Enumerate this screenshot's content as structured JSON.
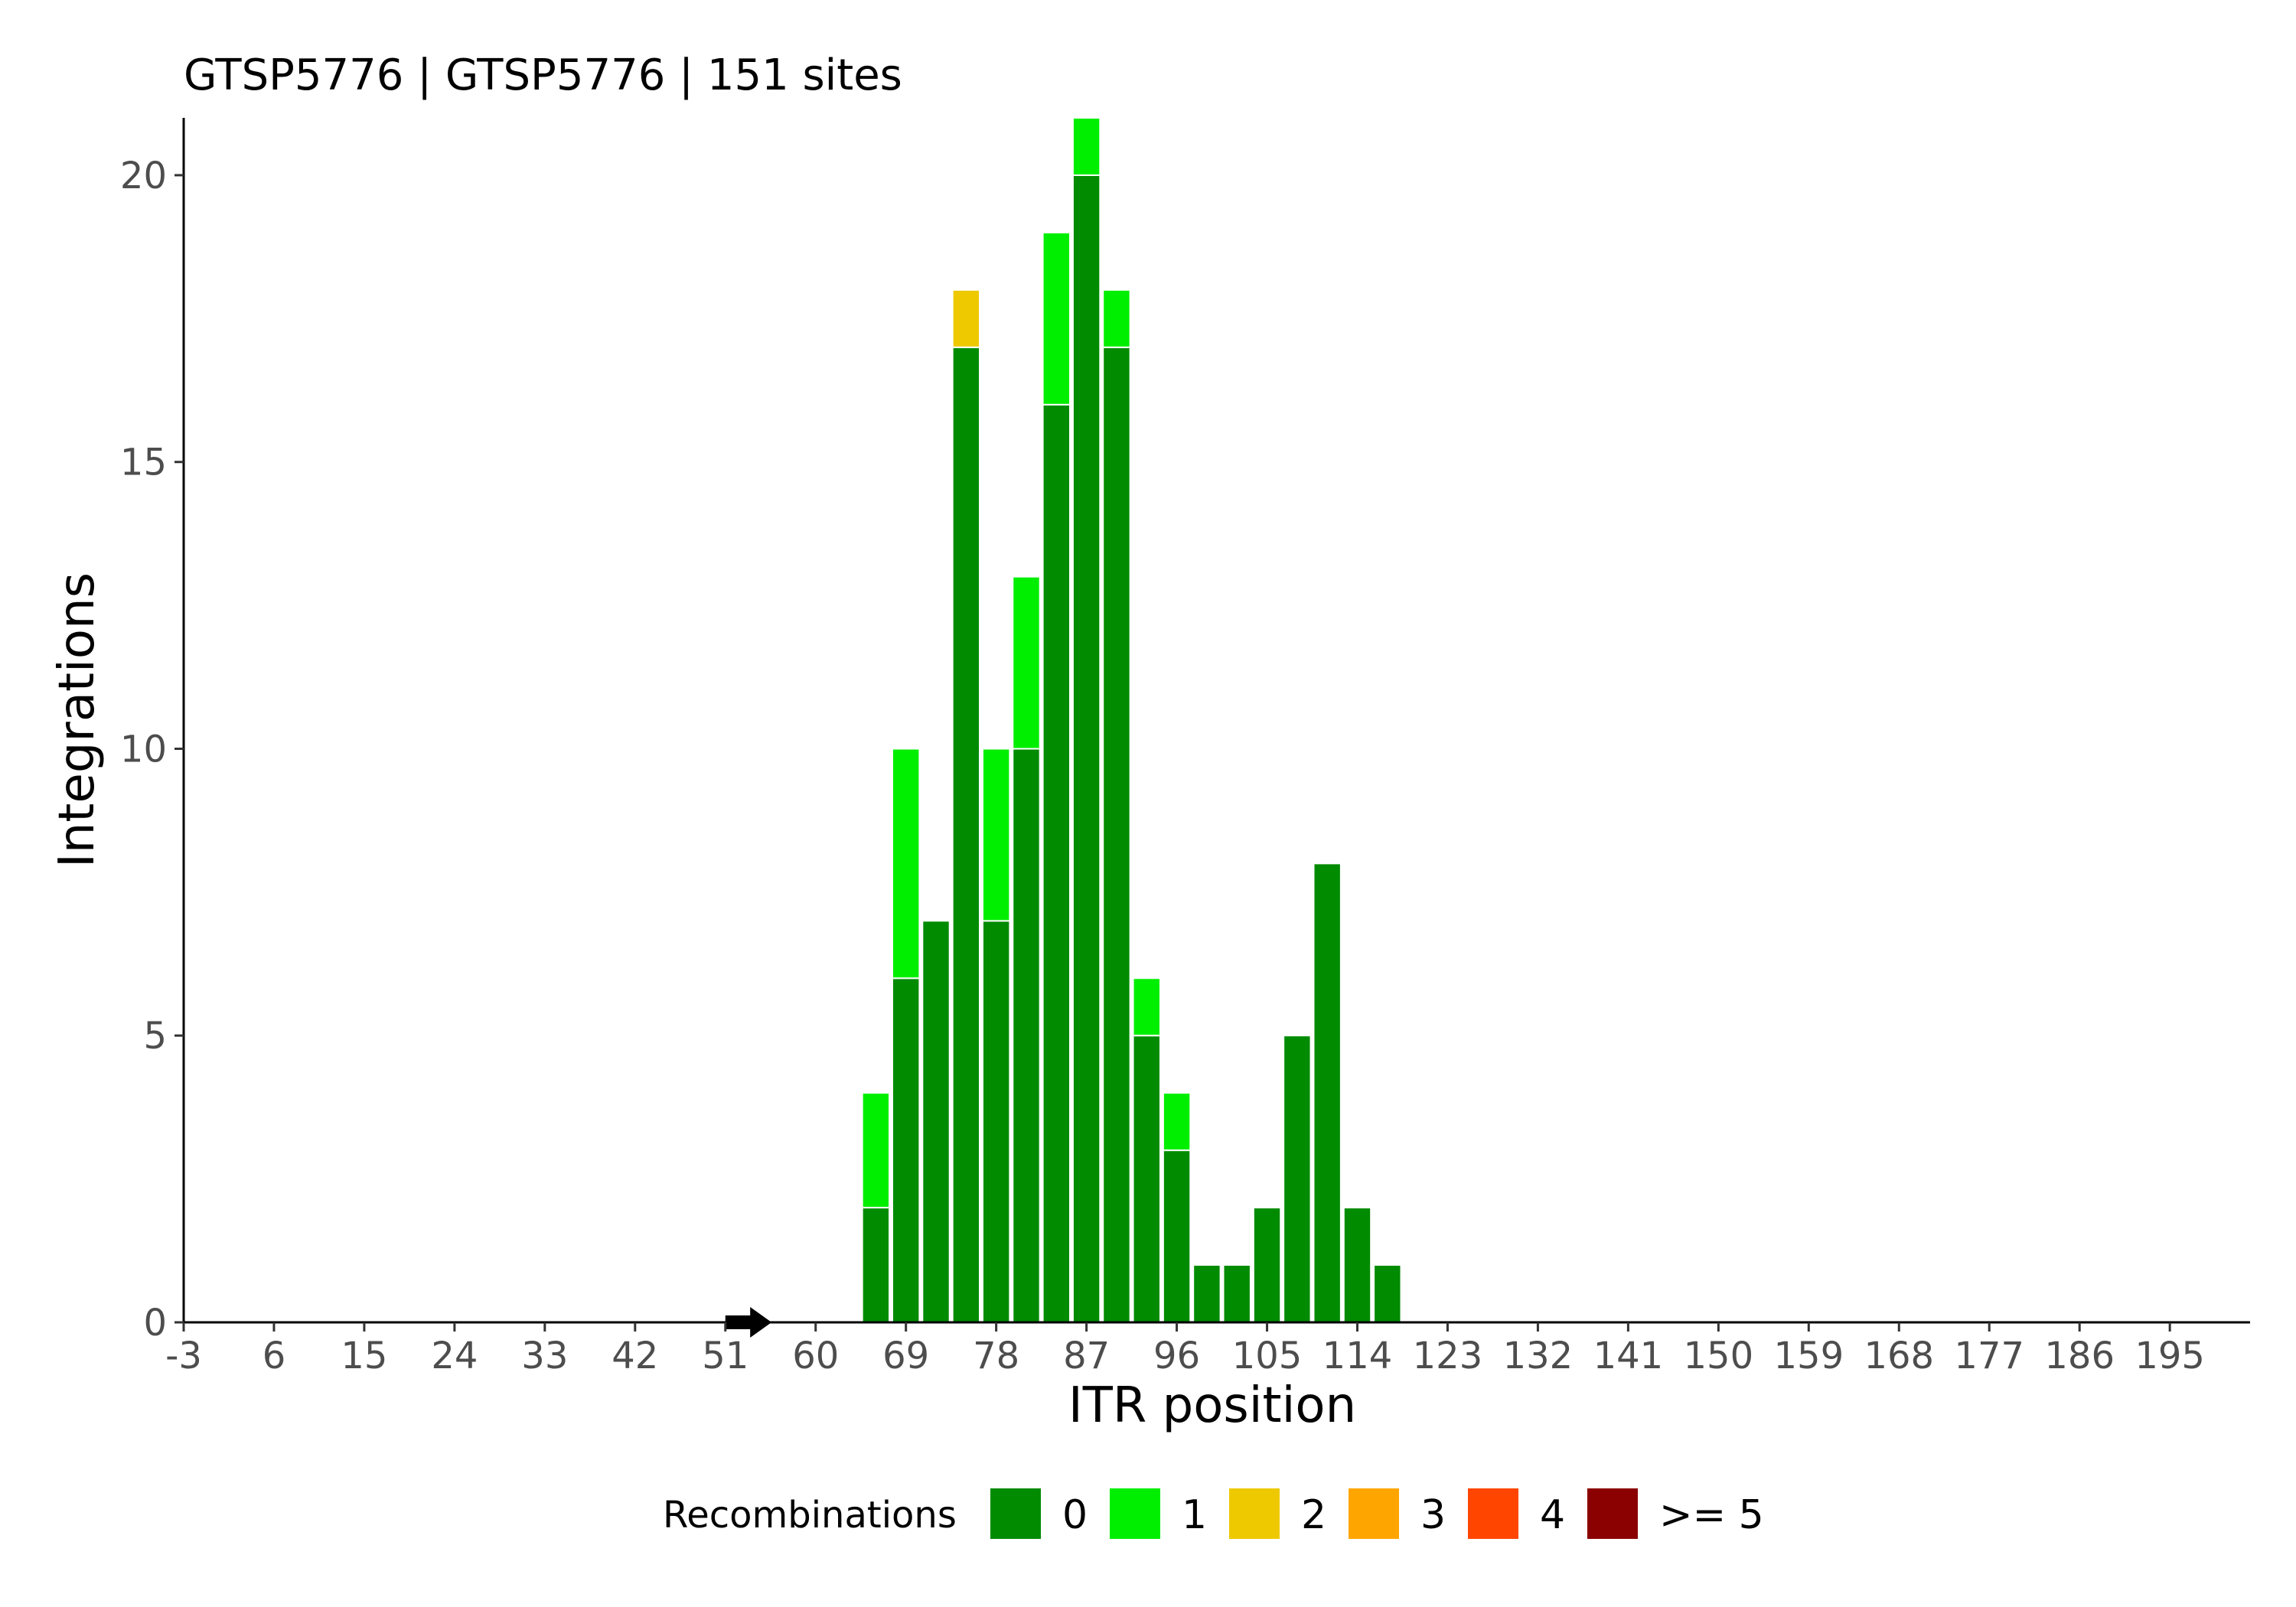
{
  "chart_data": {
    "type": "bar",
    "stacked": true,
    "title": "GTSP5776 | GTSP5776 | 151 sites",
    "xlabel": "ITR position",
    "ylabel": "Integrations",
    "xlim": [
      -3,
      203
    ],
    "ylim": [
      0,
      21
    ],
    "x_ticks": [
      -3,
      6,
      15,
      24,
      33,
      42,
      51,
      60,
      69,
      78,
      87,
      96,
      105,
      114,
      123,
      132,
      141,
      150,
      159,
      168,
      177,
      186,
      195
    ],
    "y_ticks": [
      0,
      5,
      10,
      15,
      20
    ],
    "grid": false,
    "legend": {
      "title": "Recombinations",
      "placement": "bottom",
      "entries": [
        {
          "label": "0",
          "color": "#008B00"
        },
        {
          "label": "1",
          "color": "#00EE00"
        },
        {
          "label": "2",
          "color": "#EEC900"
        },
        {
          "label": "3",
          "color": "#FFA500"
        },
        {
          "label": "4",
          "color": "#FF4500"
        },
        {
          "label": ">= 5",
          "color": "#8B0000"
        }
      ]
    },
    "x": [
      66,
      69,
      72,
      75,
      78,
      81,
      84,
      87,
      90,
      93,
      96,
      99,
      102,
      105,
      108,
      111,
      114,
      117
    ],
    "series": [
      {
        "name": "0",
        "color": "#008B00",
        "values": [
          2,
          6,
          7,
          17,
          7,
          10,
          16,
          20,
          17,
          5,
          3,
          1,
          1,
          2,
          5,
          8,
          2,
          1
        ]
      },
      {
        "name": "1",
        "color": "#00EE00",
        "values": [
          2,
          4,
          0,
          0,
          3,
          3,
          3,
          1,
          1,
          1,
          1,
          0,
          0,
          0,
          0,
          0,
          0,
          0
        ]
      },
      {
        "name": "2",
        "color": "#EEC900",
        "values": [
          0,
          0,
          0,
          1,
          0,
          0,
          0,
          0,
          0,
          0,
          0,
          0,
          0,
          0,
          0,
          0,
          0,
          0
        ]
      }
    ],
    "annotations": [
      {
        "type": "arrow",
        "x_start": 51,
        "x_end": 55,
        "y": 0,
        "color": "#000000"
      }
    ]
  }
}
